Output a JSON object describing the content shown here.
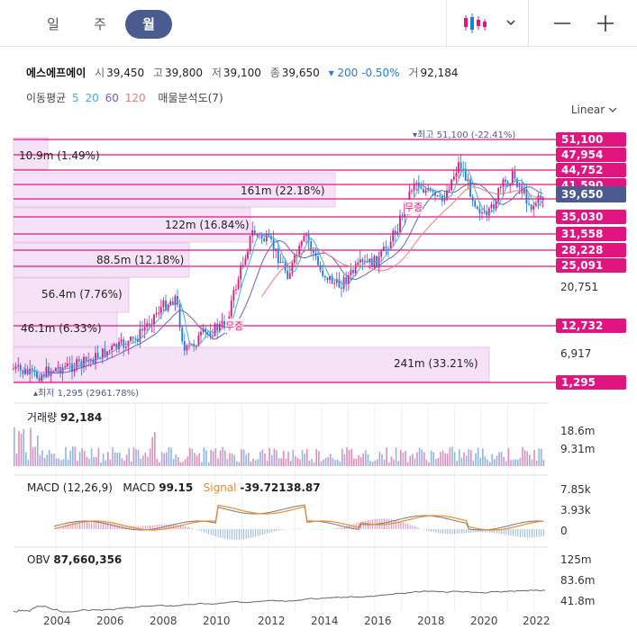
{
  "period_tabs": [
    {
      "label": "일",
      "active": false
    },
    {
      "label": "주",
      "active": false
    },
    {
      "label": "월",
      "active": true
    }
  ],
  "stock": {
    "name": "에스에프에이",
    "open_label": "시",
    "open": "39,450",
    "high_label": "고",
    "high": "39,800",
    "low_label": "저",
    "low": "39,100",
    "close_label": "종",
    "close": "39,650",
    "change": "▾ 200 -0.50%",
    "volume_label": "거",
    "volume": "92,184"
  },
  "indicators": {
    "ma_label": "이동평균",
    "ma_periods": [
      "5",
      "20",
      "60",
      "120"
    ],
    "ma_colors": [
      "#3cb4d8",
      "#3cb4d8",
      "#6b5fc7",
      "#f07a7a"
    ],
    "volume_profile_label": "매물분석도(7)"
  },
  "scale_mode": "Linear",
  "price_panel": {
    "high_marker": "▾최고  51,100 (-22.41%)",
    "low_marker": "▴최저  1,295 (2961.78%)",
    "gap_label": "무증",
    "price_tags": [
      {
        "value": "51,100",
        "color": "#e0157f"
      },
      {
        "value": "47,954",
        "color": "#e0157f"
      },
      {
        "value": "44,752",
        "color": "#e0157f"
      },
      {
        "value": "41,590",
        "color": "#e0157f"
      },
      {
        "value": "39,650",
        "color": "#4a5b8f"
      },
      {
        "value": "35,030",
        "color": "#e0157f"
      },
      {
        "value": "31,558",
        "color": "#e0157f"
      },
      {
        "value": "28,228",
        "color": "#e0157f"
      },
      {
        "value": "25,091",
        "color": "#e0157f"
      },
      {
        "value": "12,732",
        "color": "#e0157f"
      },
      {
        "value": "1,295",
        "color": "#e0157f"
      }
    ],
    "axis_labels": [
      "20,751",
      "6,917"
    ],
    "volume_profile": [
      {
        "label": "10.9m (1.49%)"
      },
      {
        "label": "161m (22.18%)"
      },
      {
        "label": "122m (16.84%)"
      },
      {
        "label": "88.5m (12.18%)"
      },
      {
        "label": "56.4m (7.76%)"
      },
      {
        "label": "46.1m (6.33%)"
      },
      {
        "label": "241m (33.21%)"
      }
    ]
  },
  "volume_panel": {
    "title": "거래량",
    "value": "92,184",
    "axis": [
      "18.6m",
      "9.31m"
    ]
  },
  "macd_panel": {
    "title": "MACD (12,26,9)",
    "macd_label": "MACD",
    "macd_value": "99.15",
    "signal_label": "Signal",
    "signal_value": "-39.72138.87",
    "axis": [
      "7.85k",
      "3.93k",
      "0"
    ]
  },
  "obv_panel": {
    "title": "OBV",
    "value": "87,660,356",
    "axis": [
      "125m",
      "83.6m",
      "41.8m"
    ]
  },
  "x_axis_years": [
    "2004",
    "2006",
    "2008",
    "2010",
    "2012",
    "2014",
    "2016",
    "2018",
    "2020",
    "2022"
  ]
}
